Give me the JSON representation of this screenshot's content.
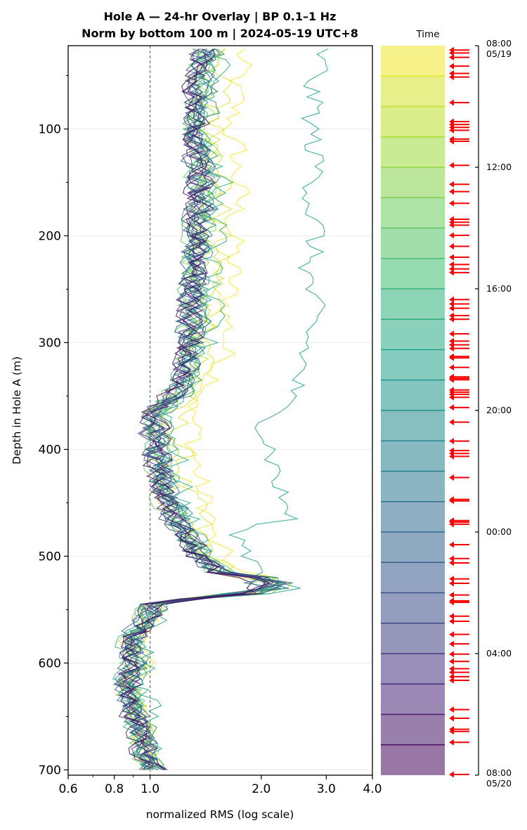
{
  "chart_data": {
    "type": "line",
    "title_line1": "Hole A — 24-hr Overlay  |  BP 0.1–1 Hz",
    "title_line2": "Norm by bottom 100 m  |  2024-05-19 UTC+8",
    "xlabel": "normalized RMS  (log scale)",
    "ylabel": "Depth in Hole A (m)",
    "xscale": "log",
    "xlim": [
      0.6,
      4.0
    ],
    "ylim": [
      705,
      22
    ],
    "y_inverted": true,
    "x_tick_values": [
      0.6,
      0.8,
      1.0,
      2.0,
      3.0,
      4.0
    ],
    "x_tick_labels": [
      "0.6",
      "0.8",
      "1.0",
      "2.0",
      "3.0",
      "4.0"
    ],
    "y_tick_values": [
      100,
      200,
      300,
      400,
      500,
      600,
      700
    ],
    "y_tick_labels": [
      "100",
      "200",
      "300",
      "400",
      "500",
      "600",
      "700"
    ],
    "reference_line_x": 1.0,
    "grid": "horizontal",
    "n_series": 24,
    "series_color_map": "viridis (by hour of day)",
    "depth_step_m": 5,
    "profile_anchors": [
      {
        "depth": 25,
        "x": 1.45
      },
      {
        "depth": 60,
        "x": 1.38
      },
      {
        "depth": 100,
        "x": 1.36
      },
      {
        "depth": 150,
        "x": 1.42
      },
      {
        "depth": 200,
        "x": 1.38
      },
      {
        "depth": 250,
        "x": 1.34
      },
      {
        "depth": 300,
        "x": 1.33
      },
      {
        "depth": 340,
        "x": 1.25
      },
      {
        "depth": 365,
        "x": 1.06
      },
      {
        "depth": 400,
        "x": 1.08
      },
      {
        "depth": 440,
        "x": 1.12
      },
      {
        "depth": 470,
        "x": 1.22
      },
      {
        "depth": 500,
        "x": 1.38
      },
      {
        "depth": 515,
        "x": 1.55
      },
      {
        "depth": 528,
        "x": 1.9
      },
      {
        "depth": 538,
        "x": 1.4
      },
      {
        "depth": 545,
        "x": 1.02
      },
      {
        "depth": 560,
        "x": 0.98
      },
      {
        "depth": 575,
        "x": 0.9
      },
      {
        "depth": 600,
        "x": 0.9
      },
      {
        "depth": 625,
        "x": 0.88
      },
      {
        "depth": 650,
        "x": 0.92
      },
      {
        "depth": 680,
        "x": 0.96
      },
      {
        "depth": 700,
        "x": 1.02
      }
    ],
    "hourly_offsets": [
      1.22,
      1.12,
      1.05,
      1.0,
      0.98,
      0.97,
      0.96,
      0.98,
      0.97,
      1.08,
      1.6,
      1.0,
      1.02,
      0.99,
      0.98,
      0.97,
      0.96,
      0.95,
      0.96,
      0.95,
      0.97,
      0.96,
      0.95,
      0.97
    ],
    "colorbar": {
      "title": "Time",
      "tick_labels": [
        {
          "line1": "08:00",
          "line2": "05/19",
          "frac": 0.0
        },
        {
          "line1": "12:00",
          "line2": "",
          "frac": 0.1667
        },
        {
          "line1": "16:00",
          "line2": "",
          "frac": 0.3333
        },
        {
          "line1": "20:00",
          "line2": "",
          "frac": 0.5
        },
        {
          "line1": "00:00",
          "line2": "",
          "frac": 0.6667
        },
        {
          "line1": "04:00",
          "line2": "",
          "frac": 0.8333
        },
        {
          "line1": "08:00",
          "line2": "05/20",
          "frac": 1.0
        }
      ],
      "n_bands": 24
    },
    "event_markers": {
      "color": "#ff0000",
      "positions_frac": [
        0.006,
        0.01,
        0.016,
        0.028,
        0.038,
        0.043,
        0.078,
        0.104,
        0.108,
        0.112,
        0.116,
        0.128,
        0.131,
        0.164,
        0.19,
        0.2,
        0.216,
        0.238,
        0.242,
        0.246,
        0.26,
        0.275,
        0.29,
        0.3,
        0.306,
        0.311,
        0.348,
        0.354,
        0.36,
        0.37,
        0.375,
        0.395,
        0.405,
        0.41,
        0.415,
        0.426,
        0.428,
        0.441,
        0.454,
        0.456,
        0.458,
        0.472,
        0.475,
        0.478,
        0.482,
        0.496,
        0.516,
        0.542,
        0.555,
        0.559,
        0.563,
        0.592,
        0.622,
        0.624,
        0.651,
        0.653,
        0.656,
        0.684,
        0.703,
        0.709,
        0.731,
        0.737,
        0.753,
        0.761,
        0.763,
        0.782,
        0.789,
        0.807,
        0.82,
        0.834,
        0.844,
        0.854,
        0.859,
        0.865,
        0.87,
        0.91,
        0.922,
        0.937,
        0.94,
        0.955,
        0.999
      ]
    }
  }
}
